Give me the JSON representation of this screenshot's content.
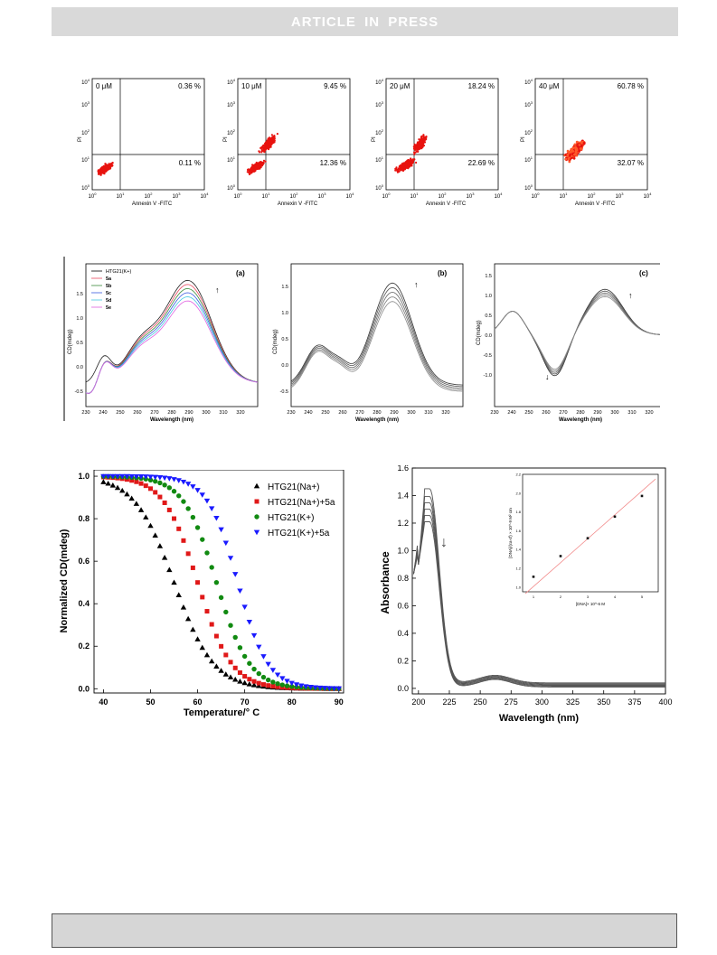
{
  "banner": {
    "text": "ARTICLE  IN  PRESS"
  },
  "flow_panels": [
    {
      "conc": "0 μM",
      "ur": "0.36 %",
      "lr": "0.11 %"
    },
    {
      "conc": "10 μM",
      "ur": "9.45 %",
      "lr": "12.36 %"
    },
    {
      "conc": "20 μM",
      "ur": "18.24 %",
      "lr": "22.69 %"
    },
    {
      "conc": "40 μM",
      "ur": "60.78 %",
      "lr": "32.07 %"
    }
  ],
  "flow_axes": {
    "xlabel": "Annexin V -FITC",
    "ylabel": "PI",
    "xticks": [
      "10^0",
      "10^1",
      "10^2",
      "10^3",
      "10^4"
    ],
    "yticks": [
      "10^0",
      "10^1",
      "10^2",
      "10^3",
      "10^4"
    ]
  },
  "cd_panels": {
    "ylabel": "CD(mdeg)",
    "xlabel": "Wavelength (nm)",
    "letters": [
      "(a)",
      "(b)",
      "(c)"
    ],
    "legend": [
      "HTG21(K+)",
      "5a",
      "5b",
      "5c",
      "5d",
      "5e"
    ]
  },
  "chart_data": [
    {
      "type": "scatter",
      "title": "",
      "xlabel": "Temperature/° C",
      "ylabel": "Normalized CD(mdeg)",
      "xlim": [
        38,
        91
      ],
      "ylim": [
        -0.02,
        1.03
      ],
      "xticks": [
        40,
        50,
        60,
        70,
        80,
        90
      ],
      "yticks": [
        0.0,
        0.2,
        0.4,
        0.6,
        0.8,
        1.0
      ],
      "legend_position": "top-right",
      "series": [
        {
          "name": "HTG21(Na+)",
          "marker": "triangle-up",
          "color": "#000000",
          "tm": 55,
          "slope": 4.2
        },
        {
          "name": "HTG21(Na+)+5a",
          "marker": "square",
          "color": "#e01818",
          "tm": 60,
          "slope": 3.6
        },
        {
          "name": "HTG21(K+)",
          "marker": "circle",
          "color": "#118a11",
          "tm": 64,
          "slope": 3.5
        },
        {
          "name": "HTG21(K+)+5a",
          "marker": "triangle-down",
          "color": "#1a1aff",
          "tm": 68.5,
          "slope": 3.2
        }
      ]
    },
    {
      "type": "line",
      "title": "",
      "xlabel": "Wavelength (nm)",
      "ylabel": "Absorbance",
      "xlim": [
        195,
        400
      ],
      "ylim": [
        -0.04,
        1.6
      ],
      "xticks": [
        200,
        225,
        250,
        275,
        300,
        325,
        350,
        375,
        400
      ],
      "yticks": [
        0.0,
        0.2,
        0.4,
        0.6,
        0.8,
        1.0,
        1.2,
        1.4,
        1.6
      ],
      "peak_values": [
        1.41,
        1.36,
        1.32,
        1.28,
        1.24,
        1.2
      ],
      "inset": {
        "xlabel": "[DNA]× 10^-6 M",
        "ylabel": "[DNA]/(εa-εf) × 10^-9 M² cm",
        "x": [
          1,
          2,
          3,
          4,
          5
        ],
        "y": [
          1.11,
          1.33,
          1.52,
          1.75,
          1.97
        ],
        "xlim": [
          0.6,
          5.6
        ],
        "ylim": [
          0.95,
          2.2
        ]
      }
    }
  ]
}
